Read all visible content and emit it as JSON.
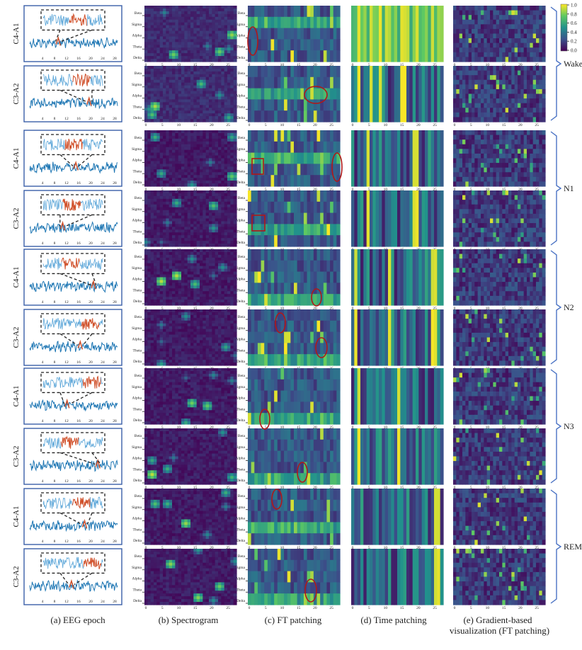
{
  "stages": [
    "Wake",
    "N1",
    "N2",
    "N3",
    "REM"
  ],
  "channels": [
    "C4-A1",
    "C3-A2"
  ],
  "freq_bands": [
    "Beta",
    "Sigma",
    "Alpha",
    "Theta",
    "Delta"
  ],
  "spec_ticks": [
    "0",
    "5",
    "10",
    "15",
    "20",
    "25"
  ],
  "eeg_ticks": [
    "4",
    "8",
    "12",
    "16",
    "20",
    "24",
    "28"
  ],
  "colorbar": {
    "ticks": [
      "1.0",
      "0.8",
      "0.6",
      "0.4",
      "0.2",
      "0.0"
    ]
  },
  "captions": {
    "a": "(a) EEG epoch",
    "b": "(b) Spectrogram",
    "c": "(c) FT patching",
    "d": "(d) Time patching",
    "e1": "(e) Gradient-based",
    "e2": "visualization (FT patching)"
  },
  "colors": {
    "epoch_frame": "#3a5fa8",
    "signal": "#1f77b4",
    "highlight": "#d0502a",
    "annotation": "#b01818",
    "bracket": "#4a72c4"
  }
}
